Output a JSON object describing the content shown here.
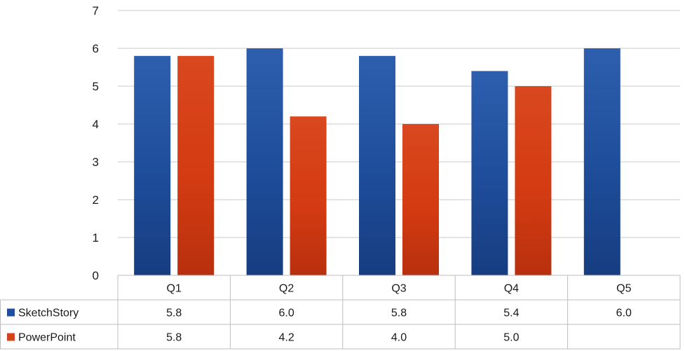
{
  "chart_data": {
    "type": "bar",
    "categories": [
      "Q1",
      "Q2",
      "Q3",
      "Q4",
      "Q5"
    ],
    "series": [
      {
        "name": "SketchStory",
        "values": [
          5.8,
          6.0,
          5.8,
          5.4,
          6.0
        ],
        "labels": [
          "5.8",
          "6.0",
          "5.8",
          "5.4",
          "6.0"
        ],
        "color": "#1f4e9c"
      },
      {
        "name": "PowerPoint",
        "values": [
          5.8,
          4.2,
          4.0,
          5.0,
          null
        ],
        "labels": [
          "5.8",
          "4.2",
          "4.0",
          "5.0",
          ""
        ],
        "color": "#d6421b"
      }
    ],
    "ylim": [
      0,
      7
    ],
    "yticks": [
      "0",
      "1",
      "2",
      "3",
      "4",
      "5",
      "6",
      "7"
    ],
    "grid": true,
    "legend": "data-table",
    "title": "",
    "xlabel": "",
    "ylabel": ""
  }
}
